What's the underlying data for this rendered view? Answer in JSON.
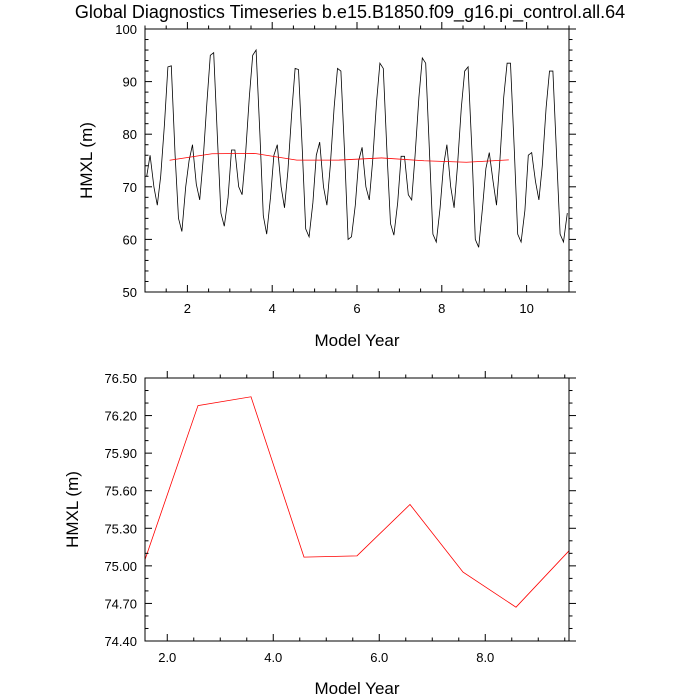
{
  "page": {
    "title": "Global Diagnostics Timeseries b.e15.B1850.f09_g16.pi_control.all.64"
  },
  "colors": {
    "monthly_line": "#000000",
    "annual_line": "#ff0000",
    "axes": "#000000",
    "background": "#ffffff"
  },
  "chart_data": [
    {
      "type": "line",
      "title": "Global Diagnostics Timeseries b.e15.B1850.f09_g16.pi_control.all.64",
      "xlabel": "Model Year",
      "ylabel": "HMXL (m)",
      "xlim": [
        1.0,
        11.0
      ],
      "ylim": [
        50,
        100
      ],
      "xticks": [
        2,
        4,
        6,
        8,
        10
      ],
      "xtick_labels": [
        "2",
        "4",
        "6",
        "8",
        "10"
      ],
      "yticks": [
        50,
        60,
        70,
        80,
        90,
        100
      ],
      "ytick_labels": [
        "50",
        "60",
        "70",
        "80",
        "90",
        "100"
      ],
      "grid": false,
      "series": [
        {
          "color": "#000000",
          "x": [
            1.04,
            1.12,
            1.21,
            1.29,
            1.37,
            1.46,
            1.54,
            1.62,
            1.71,
            1.79,
            1.87,
            1.96,
            2.04,
            2.12,
            2.21,
            2.29,
            2.37,
            2.46,
            2.54,
            2.62,
            2.71,
            2.79,
            2.87,
            2.96,
            3.04,
            3.12,
            3.21,
            3.29,
            3.37,
            3.46,
            3.54,
            3.62,
            3.71,
            3.79,
            3.87,
            3.96,
            4.04,
            4.12,
            4.21,
            4.29,
            4.37,
            4.46,
            4.54,
            4.62,
            4.71,
            4.79,
            4.87,
            4.96,
            5.04,
            5.12,
            5.21,
            5.29,
            5.37,
            5.46,
            5.54,
            5.62,
            5.71,
            5.79,
            5.87,
            5.96,
            6.04,
            6.12,
            6.21,
            6.29,
            6.37,
            6.46,
            6.54,
            6.62,
            6.71,
            6.79,
            6.87,
            6.96,
            7.04,
            7.12,
            7.21,
            7.29,
            7.37,
            7.46,
            7.54,
            7.62,
            7.71,
            7.79,
            7.87,
            7.96,
            8.04,
            8.12,
            8.21,
            8.29,
            8.37,
            8.46,
            8.54,
            8.62,
            8.71,
            8.79,
            8.87,
            8.96,
            9.04,
            9.12,
            9.21,
            9.29,
            9.37,
            9.46,
            9.54,
            9.62,
            9.71,
            9.79,
            9.87,
            9.96,
            10.04,
            10.12,
            10.21,
            10.29,
            10.37,
            10.46,
            10.54,
            10.62,
            10.71,
            10.79,
            10.87,
            10.96
          ],
          "y": [
            72.0,
            76.0,
            70.0,
            66.5,
            72.0,
            82.0,
            92.8,
            93.0,
            76.0,
            64.0,
            61.5,
            70.0,
            75.0,
            78.0,
            70.5,
            67.5,
            75.0,
            86.0,
            95.0,
            95.5,
            79.0,
            65.0,
            62.5,
            68.0,
            77.0,
            77.0,
            70.0,
            68.5,
            76.0,
            87.0,
            95.0,
            96.0,
            80.0,
            64.5,
            61.0,
            68.0,
            76.0,
            78.0,
            70.0,
            66.0,
            73.0,
            84.0,
            92.5,
            92.3,
            77.0,
            62.0,
            60.5,
            67.0,
            76.0,
            78.5,
            70.0,
            66.5,
            74.0,
            85.0,
            92.5,
            92.0,
            76.0,
            60.0,
            60.5,
            66.5,
            75.0,
            77.5,
            70.0,
            67.5,
            75.0,
            86.0,
            93.5,
            92.5,
            76.0,
            63.0,
            60.8,
            67.0,
            75.8,
            75.8,
            68.5,
            67.5,
            76.0,
            87.0,
            94.5,
            93.5,
            76.5,
            61.0,
            59.5,
            66.0,
            74.0,
            78.0,
            70.0,
            66.0,
            74.0,
            85.0,
            92.0,
            92.8,
            77.0,
            60.0,
            58.5,
            66.0,
            73.5,
            76.5,
            71.0,
            66.5,
            75.0,
            87.0,
            93.5,
            93.5,
            77.0,
            61.0,
            59.5,
            65.5,
            76.0,
            76.5,
            71.0,
            67.5,
            74.0,
            85.0,
            92.0,
            92.0,
            75.5,
            61.0,
            59.5,
            65.0
          ]
        },
        {
          "color": "#ff0000",
          "x": [
            1.58,
            2.58,
            3.58,
            4.58,
            5.58,
            6.58,
            7.58,
            8.58,
            9.58
          ],
          "y": [
            75.05,
            76.28,
            76.35,
            75.07,
            75.08,
            75.49,
            74.95,
            74.67,
            75.12
          ]
        }
      ]
    },
    {
      "type": "line",
      "title": "",
      "xlabel": "Model Year",
      "ylabel": "HMXL (m)",
      "xlim": [
        1.58,
        9.58
      ],
      "ylim": [
        74.4,
        76.5
      ],
      "xticks": [
        2.0,
        4.0,
        6.0,
        8.0
      ],
      "xtick_labels": [
        "2.0",
        "4.0",
        "6.0",
        "8.0"
      ],
      "yticks": [
        74.4,
        74.7,
        75.0,
        75.3,
        75.6,
        75.9,
        76.2,
        76.5
      ],
      "ytick_labels": [
        "74.40",
        "74.70",
        "75.00",
        "75.30",
        "75.60",
        "75.90",
        "76.20",
        "76.50"
      ],
      "grid": false,
      "series": [
        {
          "color": "#ff0000",
          "x": [
            1.58,
            2.58,
            3.58,
            4.58,
            5.58,
            6.58,
            7.58,
            8.58,
            9.58
          ],
          "y": [
            75.05,
            76.28,
            76.35,
            75.07,
            75.08,
            75.49,
            74.95,
            74.67,
            75.12
          ]
        }
      ]
    }
  ]
}
